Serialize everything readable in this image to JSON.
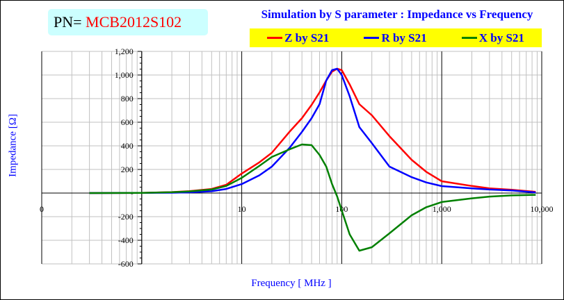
{
  "part_number": {
    "label": "PN=",
    "value": "MCB2012S102"
  },
  "chart_data": {
    "type": "line",
    "title": "Simulation by S parameter : Impedance vs Frequency",
    "xlabel": "Frequency [ MHz ]",
    "ylabel": "Impedance [Ω]",
    "xscale": "log",
    "xlim": [
      0.1,
      10000
    ],
    "ylim": [
      -600,
      1200
    ],
    "xticks": [
      {
        "v": 0.1,
        "label": "0"
      },
      {
        "v": 10,
        "label": "10"
      },
      {
        "v": 100,
        "label": "100"
      },
      {
        "v": 1000,
        "label": "1,000"
      },
      {
        "v": 10000,
        "label": "10,000"
      }
    ],
    "yticks": [
      {
        "v": 1200,
        "label": "1,200"
      },
      {
        "v": 1000,
        "label": "1,000"
      },
      {
        "v": 800,
        "label": "800"
      },
      {
        "v": 600,
        "label": "600"
      },
      {
        "v": 400,
        "label": "400"
      },
      {
        "v": 200,
        "label": "200"
      },
      {
        "v": 0,
        "label": "-"
      },
      {
        "v": -200,
        "label": "-200"
      },
      {
        "v": -400,
        "label": "-400"
      },
      {
        "v": -600,
        "label": "-600"
      }
    ],
    "grid": true,
    "legend_position": "top-right",
    "x": [
      0.3,
      1,
      2,
      3,
      5,
      7,
      10,
      15,
      20,
      30,
      40,
      50,
      60,
      70,
      80,
      90,
      100,
      120,
      150,
      200,
      300,
      500,
      700,
      1000,
      2000,
      3000,
      5000,
      8700
    ],
    "series": [
      {
        "name": "Z by S21",
        "color": "#ff0000",
        "values": [
          0,
          2,
          8,
          16,
          35,
          70,
          165,
          260,
          341,
          518,
          635,
          747,
          853,
          953,
          1029,
          1053,
          1041,
          920,
          753,
          659,
          482,
          282,
          180,
          100,
          60,
          40,
          28,
          10
        ]
      },
      {
        "name": "R by S21",
        "color": "#0000ff",
        "values": [
          0,
          1,
          3,
          6,
          15,
          35,
          76,
          150,
          224,
          382,
          518,
          635,
          753,
          953,
          1041,
          1053,
          1000,
          820,
          559,
          423,
          224,
          135,
          90,
          59,
          40,
          30,
          22,
          5
        ]
      },
      {
        "name": "X by S21",
        "color": "#008000",
        "values": [
          0,
          1,
          7,
          14,
          30,
          60,
          129,
          230,
          306,
          370,
          412,
          406,
          323,
          224,
          76,
          -29,
          -147,
          -350,
          -488,
          -459,
          -341,
          -188,
          -120,
          -76,
          -45,
          -30,
          -20,
          -15
        ]
      }
    ]
  }
}
